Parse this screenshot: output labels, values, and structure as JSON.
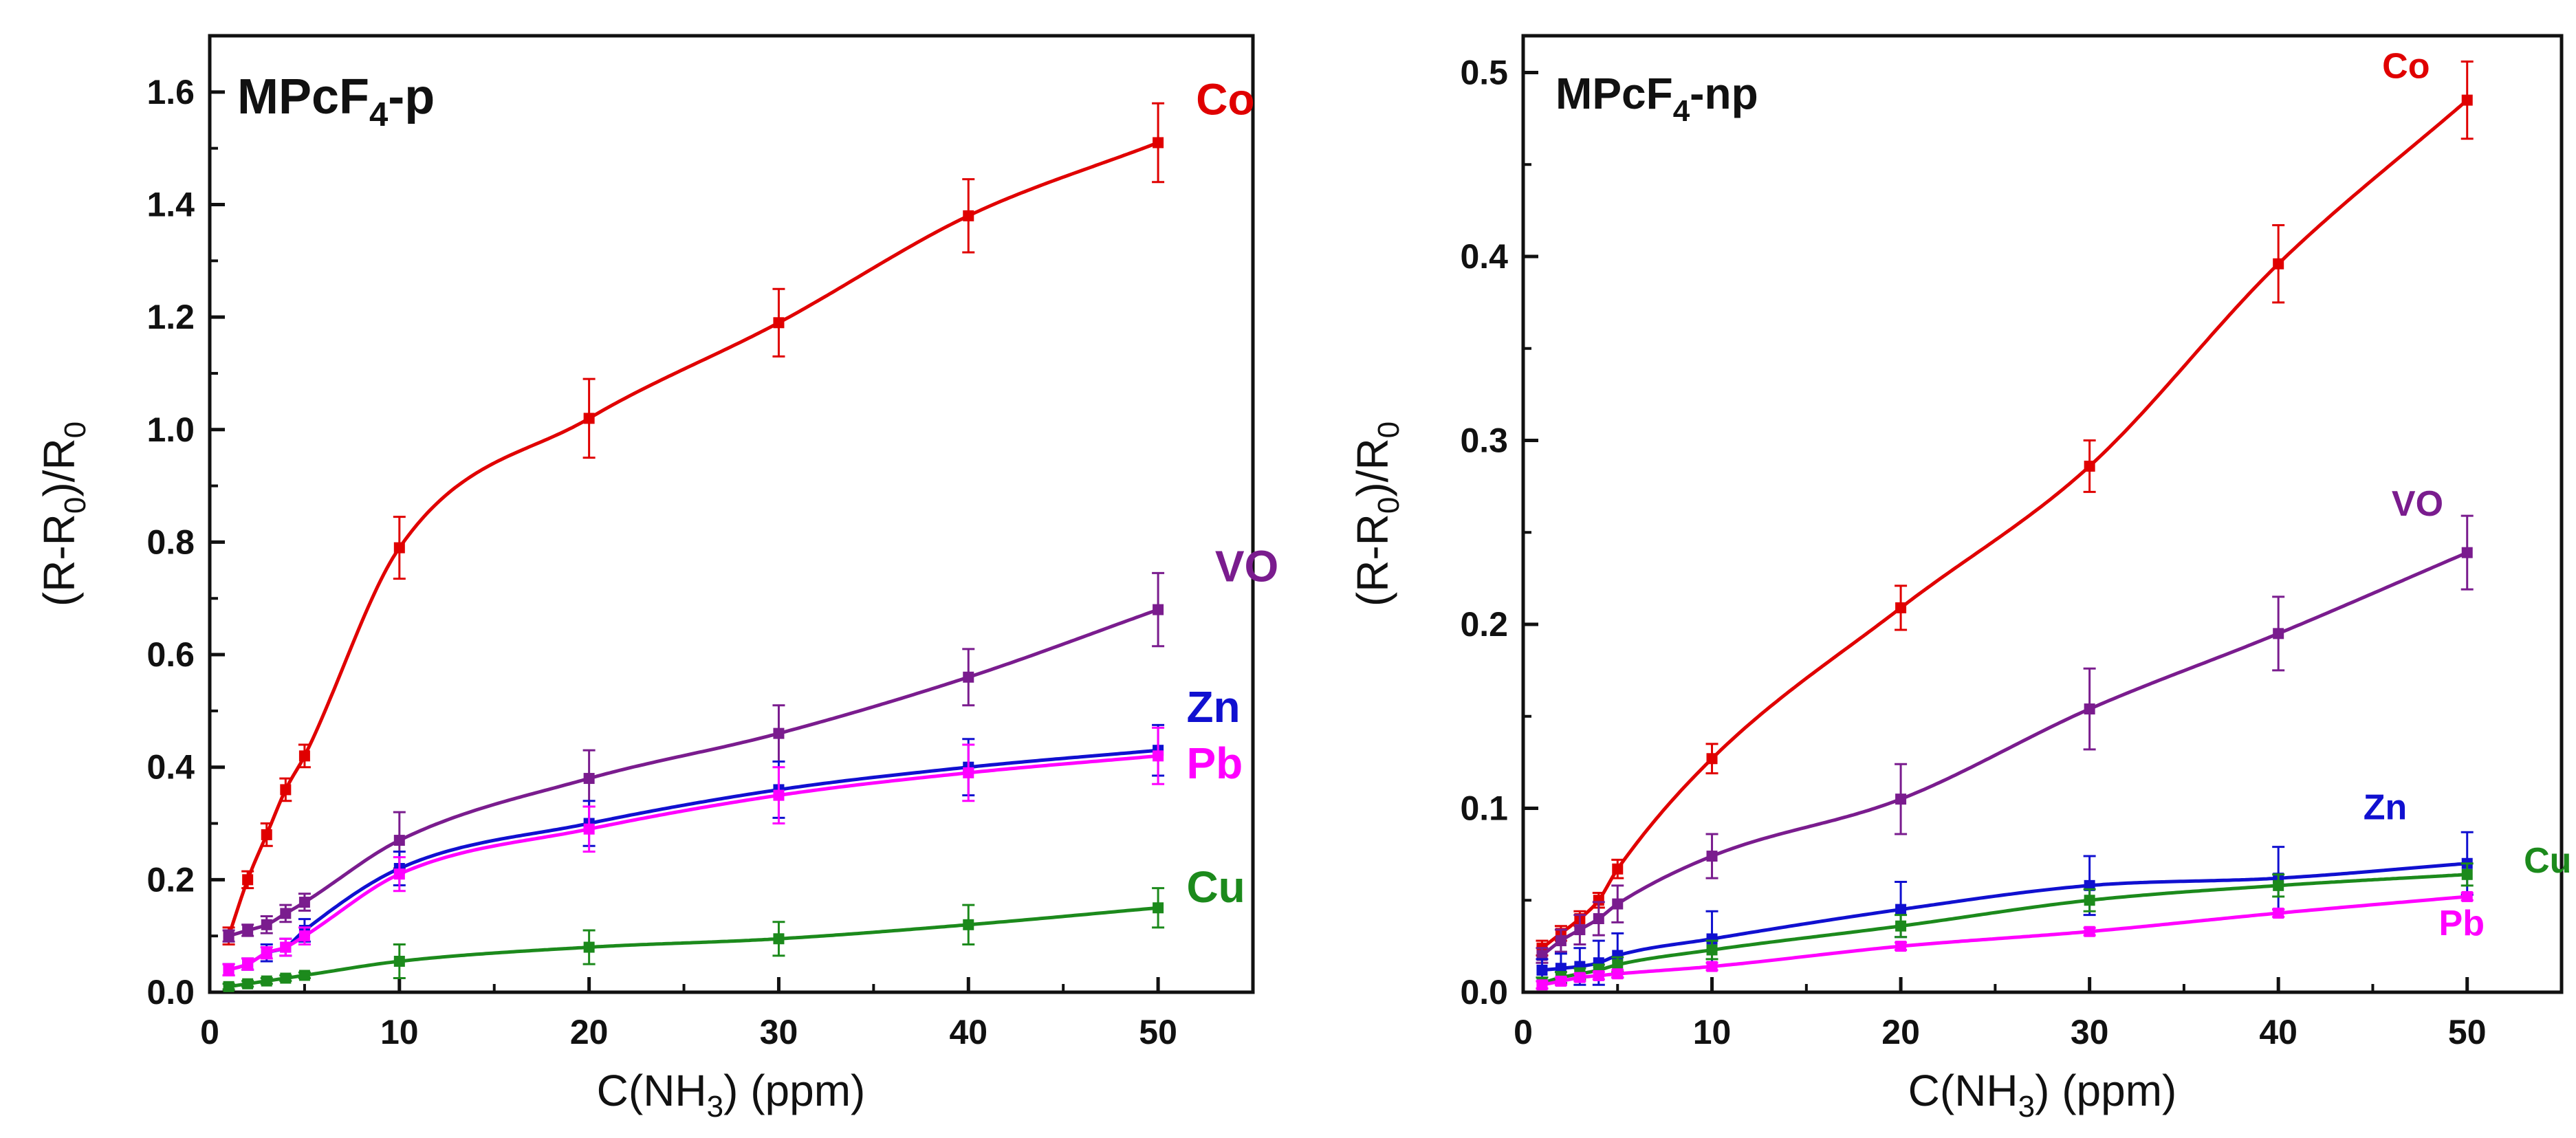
{
  "chart_data": [
    {
      "type": "line",
      "title": "MPcF",
      "title_sub": "4",
      "title_suffix": "-p",
      "xlabel": "C(NH",
      "xlabel_sub": "3",
      "xlabel_suffix": ") (ppm)",
      "ylabel": "(R-R",
      "ylabel_sub1": "0",
      "ylabel_mid": ")/R",
      "ylabel_sub2": "0",
      "xlim": [
        0,
        55
      ],
      "ylim": [
        0,
        1.7
      ],
      "xticks": [
        0,
        10,
        20,
        30,
        40,
        50
      ],
      "xtick_labels": [
        "0",
        "10",
        "20",
        "30",
        "40",
        "50"
      ],
      "yticks": [
        0.0,
        0.2,
        0.4,
        0.6,
        0.8,
        1.0,
        1.2,
        1.4,
        1.6
      ],
      "ytick_labels": [
        "0.0",
        "0.2",
        "0.4",
        "0.6",
        "0.8",
        "1.0",
        "1.2",
        "1.4",
        "1.6"
      ],
      "x": [
        1,
        2,
        3,
        4,
        5,
        10,
        20,
        30,
        40,
        50
      ],
      "series": [
        {
          "name": "Co",
          "color": "#e00000",
          "values": [
            0.1,
            0.2,
            0.28,
            0.36,
            0.42,
            0.79,
            1.02,
            1.19,
            1.38,
            1.51
          ],
          "errors": [
            0.015,
            0.015,
            0.02,
            0.02,
            0.02,
            0.055,
            0.07,
            0.06,
            0.065,
            0.07
          ]
        },
        {
          "name": "VO",
          "color": "#7a1c8e",
          "values": [
            0.1,
            0.11,
            0.12,
            0.14,
            0.16,
            0.27,
            0.38,
            0.46,
            0.56,
            0.68
          ],
          "errors": [
            0.01,
            0.01,
            0.015,
            0.015,
            0.015,
            0.05,
            0.05,
            0.05,
            0.05,
            0.065
          ]
        },
        {
          "name": "Zn",
          "color": "#1010d0",
          "values": [
            0.04,
            0.05,
            0.07,
            0.08,
            0.11,
            0.22,
            0.3,
            0.36,
            0.4,
            0.43
          ],
          "errors": [
            0.01,
            0.01,
            0.015,
            0.015,
            0.02,
            0.03,
            0.04,
            0.05,
            0.05,
            0.045
          ]
        },
        {
          "name": "Pb",
          "color": "#ff00ff",
          "values": [
            0.04,
            0.05,
            0.07,
            0.08,
            0.1,
            0.21,
            0.29,
            0.35,
            0.39,
            0.42
          ],
          "errors": [
            0.01,
            0.01,
            0.01,
            0.015,
            0.015,
            0.03,
            0.04,
            0.05,
            0.05,
            0.05
          ]
        },
        {
          "name": "Cu",
          "color": "#1c8a1c",
          "values": [
            0.01,
            0.015,
            0.02,
            0.025,
            0.03,
            0.055,
            0.08,
            0.095,
            0.12,
            0.15
          ],
          "errors": [
            0.005,
            0.005,
            0.005,
            0.005,
            0.005,
            0.03,
            0.03,
            0.03,
            0.035,
            0.035
          ]
        }
      ],
      "series_label_pos": {
        "Co": [
          52,
          1.56
        ],
        "VO": [
          53,
          0.73
        ],
        "Zn": [
          51.5,
          0.48
        ],
        "Pb": [
          51.5,
          0.38
        ],
        "Cu": [
          51.5,
          0.16
        ]
      }
    },
    {
      "type": "line",
      "title": "MPcF",
      "title_sub": "4",
      "title_suffix": "-np",
      "xlabel": "C(NH",
      "xlabel_sub": "3",
      "xlabel_suffix": ") (ppm)",
      "ylabel": "(R-R",
      "ylabel_sub1": "0",
      "ylabel_mid": ")/R",
      "ylabel_sub2": "0",
      "xlim": [
        0,
        55
      ],
      "ylim": [
        0,
        0.52
      ],
      "xticks": [
        0,
        10,
        20,
        30,
        40,
        50
      ],
      "xtick_labels": [
        "0",
        "10",
        "20",
        "30",
        "40",
        "50"
      ],
      "yticks": [
        0.0,
        0.1,
        0.2,
        0.3,
        0.4,
        0.5
      ],
      "ytick_labels": [
        "0.0",
        "0.1",
        "0.2",
        "0.3",
        "0.4",
        "0.5"
      ],
      "x": [
        1,
        2,
        3,
        4,
        5,
        10,
        20,
        30,
        40,
        50
      ],
      "series": [
        {
          "name": "Co",
          "color": "#e00000",
          "values": [
            0.024,
            0.032,
            0.04,
            0.05,
            0.067,
            0.127,
            0.209,
            0.286,
            0.396,
            0.485
          ],
          "errors": [
            0.004,
            0.004,
            0.004,
            0.004,
            0.005,
            0.008,
            0.012,
            0.014,
            0.021,
            0.021
          ]
        },
        {
          "name": "VO",
          "color": "#7a1c8e",
          "values": [
            0.02,
            0.028,
            0.034,
            0.04,
            0.048,
            0.074,
            0.105,
            0.154,
            0.195,
            0.239
          ],
          "errors": [
            0.004,
            0.006,
            0.008,
            0.009,
            0.01,
            0.012,
            0.019,
            0.022,
            0.02,
            0.02
          ]
        },
        {
          "name": "Zn",
          "color": "#1010d0",
          "values": [
            0.012,
            0.013,
            0.014,
            0.016,
            0.02,
            0.029,
            0.045,
            0.058,
            0.062,
            0.07
          ],
          "errors": [
            0.006,
            0.008,
            0.01,
            0.012,
            0.012,
            0.015,
            0.015,
            0.016,
            0.017,
            0.017
          ]
        },
        {
          "name": "Cu",
          "color": "#1c8a1c",
          "values": [
            0.005,
            0.008,
            0.01,
            0.012,
            0.015,
            0.023,
            0.036,
            0.05,
            0.058,
            0.064
          ],
          "errors": [
            0.003,
            0.003,
            0.003,
            0.003,
            0.004,
            0.005,
            0.006,
            0.006,
            0.006,
            0.006
          ]
        },
        {
          "name": "Pb",
          "color": "#ff00ff",
          "values": [
            0.004,
            0.006,
            0.008,
            0.009,
            0.01,
            0.014,
            0.025,
            0.033,
            0.043,
            0.052
          ],
          "errors": [
            0.002,
            0.002,
            0.002,
            0.002,
            0.002,
            0.002,
            0.002,
            0.002,
            0.002,
            0.002
          ]
        }
      ],
      "series_label_pos": {
        "Co": [
          45.5,
          0.497
        ],
        "VO": [
          46,
          0.259
        ],
        "Zn": [
          44.5,
          0.094
        ],
        "Cu": [
          53,
          0.065
        ],
        "Pb": [
          48.5,
          0.031
        ]
      }
    }
  ]
}
